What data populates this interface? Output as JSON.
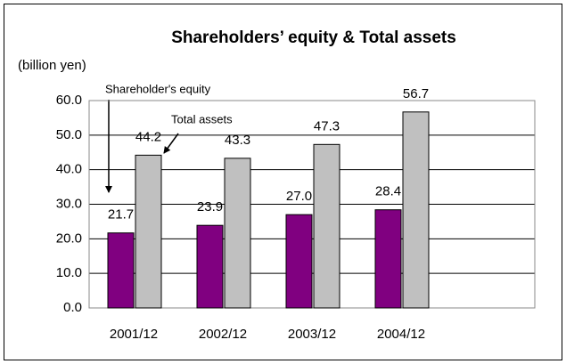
{
  "chart_data": {
    "type": "bar",
    "title": "Shareholders’ equity & Total assets",
    "y_axis_label": "(billion yen)",
    "annotations": [
      "Shareholder's equity",
      "Total assets"
    ],
    "categories": [
      "2001/12",
      "2002/12",
      "2003/12",
      "2004/12",
      null
    ],
    "series": [
      {
        "name": "Shareholder's equity",
        "color": "#800080",
        "values": [
          21.7,
          23.9,
          27.0,
          28.4,
          null
        ],
        "value_labels": [
          "21.7",
          "23.9",
          "27.0",
          "28.4",
          null
        ]
      },
      {
        "name": "Total assets",
        "color": "#c0c0c0",
        "values": [
          44.2,
          43.3,
          47.3,
          56.7,
          null
        ],
        "value_labels": [
          "44.2",
          "43.3",
          "47.3",
          "56.7",
          null
        ]
      }
    ],
    "ylim": [
      0,
      60
    ],
    "yticks": [
      {
        "value": 0,
        "label": "0.0"
      },
      {
        "value": 10,
        "label": "10.0"
      },
      {
        "value": 20,
        "label": "20.0"
      },
      {
        "value": 30,
        "label": "30.0"
      },
      {
        "value": 40,
        "label": "40.0"
      },
      {
        "value": 50,
        "label": "50.0"
      },
      {
        "value": 60,
        "label": "60.0"
      }
    ],
    "grid": true
  }
}
